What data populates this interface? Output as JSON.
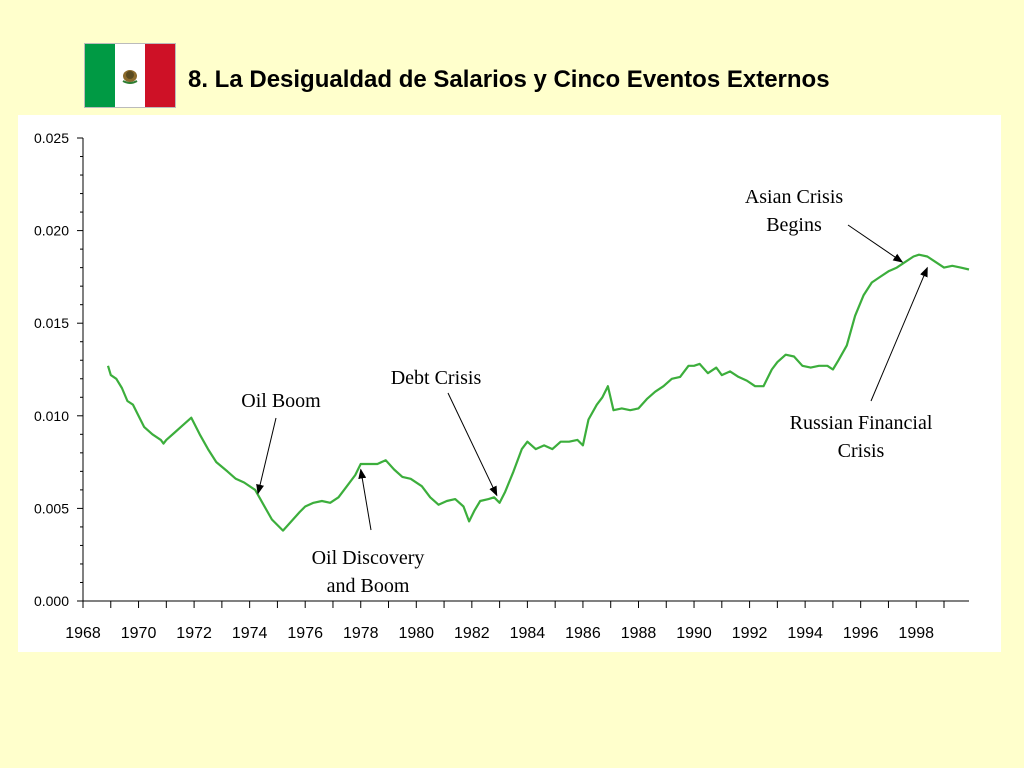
{
  "title": "8.  La Desigualdad de Salarios y Cinco Eventos Externos",
  "flag": {
    "icon": "mexico-flag-icon",
    "colors": [
      "#009a44",
      "#ffffff",
      "#ce1126"
    ]
  },
  "colors": {
    "background": "#ffffcc",
    "panel": "#ffffff",
    "line": "#3cae3c",
    "axis": "#000000"
  },
  "chart_data": {
    "type": "line",
    "title": "",
    "xlabel": "",
    "ylabel": "",
    "xlim": [
      1968,
      1999.9
    ],
    "ylim": [
      0,
      0.025
    ],
    "xticks": [
      1968,
      1970,
      1972,
      1974,
      1976,
      1978,
      1980,
      1982,
      1984,
      1986,
      1988,
      1990,
      1992,
      1994,
      1996,
      1998
    ],
    "xtick_labels": [
      "1968",
      "1970",
      "1972",
      "1974",
      "1976",
      "1978",
      "1980",
      "1982",
      "1984",
      "1986",
      "1988",
      "1990",
      "1992",
      "1994",
      "1996",
      "1998"
    ],
    "yticks": [
      0,
      0.005,
      0.01,
      0.015,
      0.02,
      0.025
    ],
    "ytick_labels": [
      "0.000",
      "0.005",
      "0.010",
      "0.015",
      "0.020",
      "0.025"
    ],
    "grid": false,
    "legend": "none",
    "series": [
      {
        "color": "#3cae3c",
        "x": [
          1968.9,
          1969.0,
          1969.2,
          1969.4,
          1969.6,
          1969.8,
          1970.0,
          1970.2,
          1970.5,
          1970.8,
          1970.9,
          1971.0,
          1971.3,
          1971.6,
          1971.9,
          1972.2,
          1972.5,
          1972.8,
          1973.2,
          1973.5,
          1973.8,
          1974.2,
          1974.5,
          1974.8,
          1975.2,
          1975.5,
          1975.8,
          1976.0,
          1976.3,
          1976.6,
          1976.9,
          1977.2,
          1977.5,
          1977.8,
          1978.0,
          1978.3,
          1978.6,
          1978.9,
          1979.2,
          1979.5,
          1979.8,
          1980.2,
          1980.5,
          1980.8,
          1981.1,
          1981.4,
          1981.7,
          1981.9,
          1982.1,
          1982.3,
          1982.6,
          1982.8,
          1983.0,
          1983.2,
          1983.5,
          1983.8,
          1984.0,
          1984.3,
          1984.6,
          1984.9,
          1985.2,
          1985.5,
          1985.8,
          1986.0,
          1986.2,
          1986.5,
          1986.7,
          1986.9,
          1987.1,
          1987.4,
          1987.7,
          1988.0,
          1988.3,
          1988.6,
          1988.9,
          1989.2,
          1989.5,
          1989.8,
          1990.0,
          1990.2,
          1990.5,
          1990.8,
          1991.0,
          1991.3,
          1991.6,
          1991.9,
          1992.2,
          1992.5,
          1992.8,
          1993.0,
          1993.3,
          1993.6,
          1993.9,
          1994.2,
          1994.5,
          1994.8,
          1995.0,
          1995.2,
          1995.5,
          1995.8,
          1996.1,
          1996.4,
          1996.7,
          1997.0,
          1997.3,
          1997.6,
          1997.9,
          1998.1,
          1998.4,
          1998.7,
          1999.0,
          1999.3,
          1999.6,
          1999.9
        ],
        "y": [
          0.0127,
          0.0122,
          0.012,
          0.0115,
          0.0108,
          0.0106,
          0.01,
          0.0094,
          0.009,
          0.0087,
          0.0085,
          0.0087,
          0.0091,
          0.0095,
          0.0099,
          0.009,
          0.0082,
          0.0075,
          0.007,
          0.0066,
          0.0064,
          0.006,
          0.0052,
          0.0044,
          0.0038,
          0.0043,
          0.0048,
          0.0051,
          0.0053,
          0.0054,
          0.0053,
          0.0056,
          0.0062,
          0.0068,
          0.0074,
          0.0074,
          0.0074,
          0.0076,
          0.0071,
          0.0067,
          0.0066,
          0.0062,
          0.0056,
          0.0052,
          0.0054,
          0.0055,
          0.0051,
          0.0043,
          0.0049,
          0.0054,
          0.0055,
          0.0056,
          0.0053,
          0.0059,
          0.007,
          0.0082,
          0.0086,
          0.0082,
          0.0084,
          0.0082,
          0.0086,
          0.0086,
          0.0087,
          0.0084,
          0.0098,
          0.0106,
          0.011,
          0.0116,
          0.0103,
          0.0104,
          0.0103,
          0.0104,
          0.0109,
          0.0113,
          0.0116,
          0.012,
          0.0121,
          0.0127,
          0.0127,
          0.0128,
          0.0123,
          0.0126,
          0.0122,
          0.0124,
          0.0121,
          0.0119,
          0.0116,
          0.0116,
          0.0125,
          0.0129,
          0.0133,
          0.0132,
          0.0127,
          0.0126,
          0.0127,
          0.0127,
          0.0125,
          0.013,
          0.0138,
          0.0154,
          0.0165,
          0.0172,
          0.0175,
          0.0178,
          0.018,
          0.0183,
          0.0186,
          0.0187,
          0.0186,
          0.0183,
          0.018,
          0.0181,
          0.018,
          0.0179
        ]
      }
    ],
    "annotations": [
      {
        "lines": [
          "Oil Boom"
        ],
        "target": [
          1974.3,
          0.0058
        ]
      },
      {
        "lines": [
          "Oil Discovery",
          "and Boom"
        ],
        "target": [
          1978.0,
          0.0071
        ]
      },
      {
        "lines": [
          "Debt Crisis"
        ],
        "target": [
          1982.9,
          0.0057
        ]
      },
      {
        "lines": [
          "Asian Crisis",
          "Begins"
        ],
        "target": [
          1997.5,
          0.0183
        ]
      },
      {
        "lines": [
          "Russian Financial",
          "Crisis"
        ],
        "target": [
          1998.4,
          0.018
        ]
      }
    ]
  }
}
